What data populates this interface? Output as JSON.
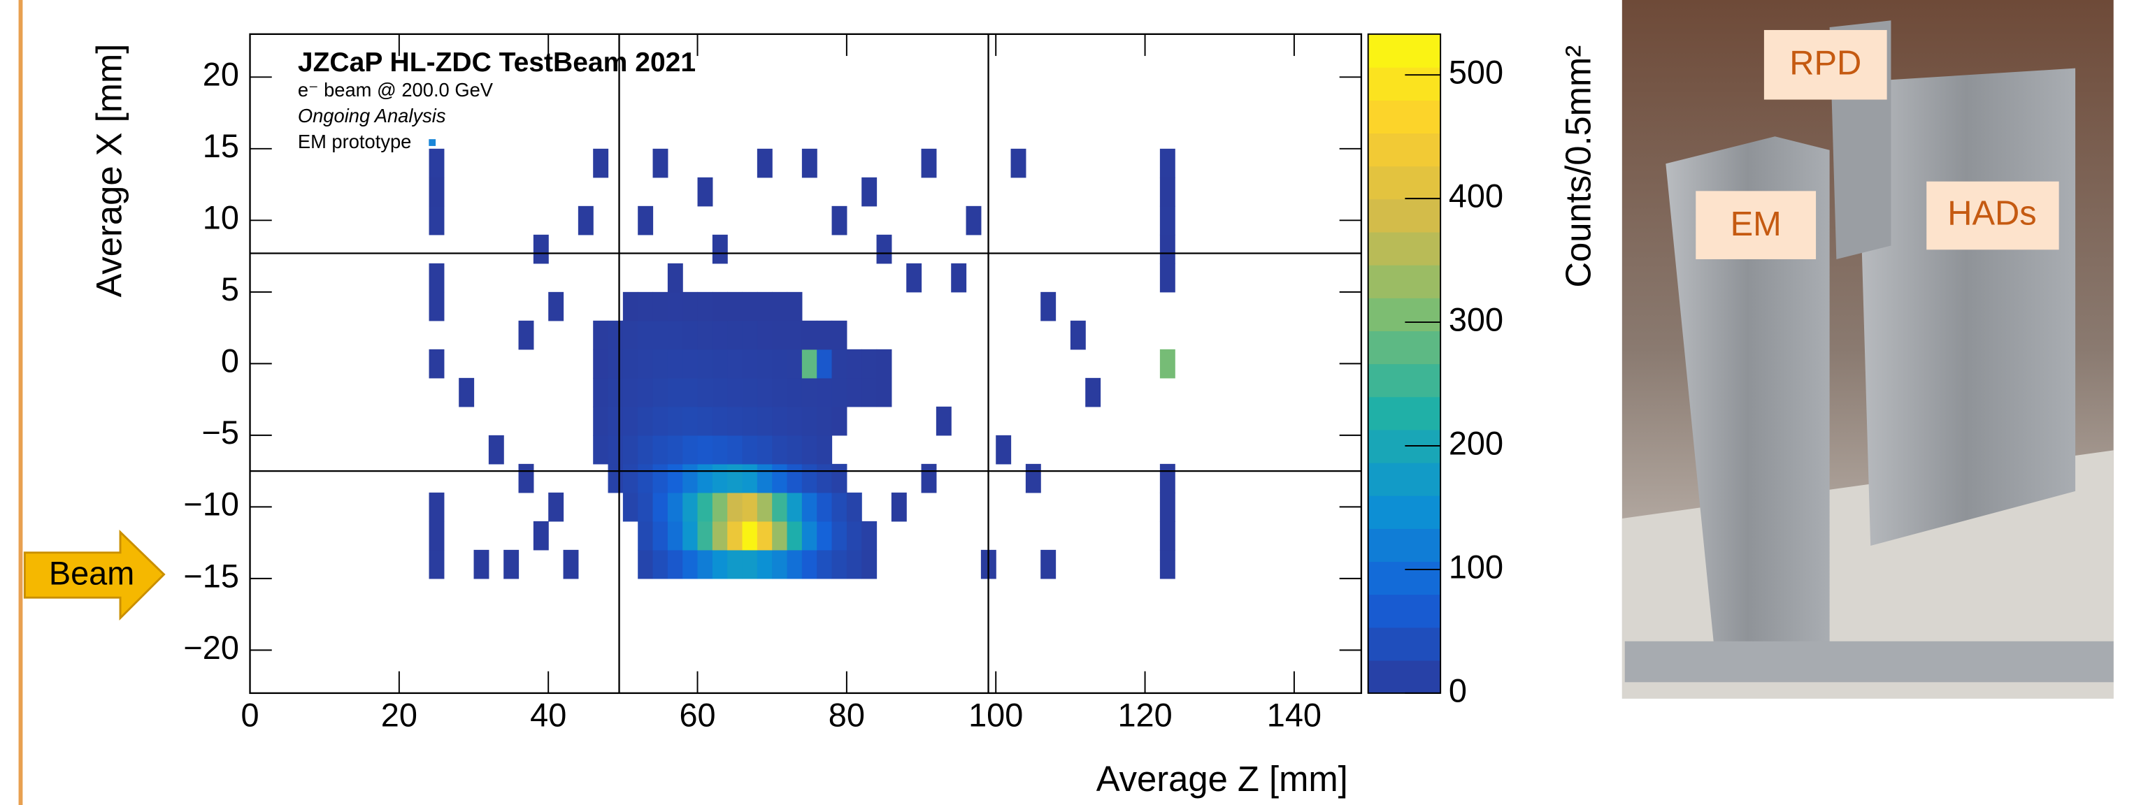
{
  "chart_data": {
    "type": "heatmap",
    "title": "JZCaP HL-ZDC TestBeam 2021",
    "subtitle": "e⁻ beam @ 200.0 GeV",
    "status": "Ongoing Analysis",
    "legend_label": "EM prototype",
    "x_label": "Average Z [mm]",
    "y_label": "Average X [mm]",
    "colorbar_label": "Counts/0.5mm²",
    "annotations": {
      "beam": "Beam",
      "rpd": "RPD",
      "em": "EM",
      "hads": "HADs"
    },
    "xlim": [
      0,
      149
    ],
    "ylim": [
      -23,
      23
    ],
    "zlim": [
      0,
      533
    ],
    "xticks": [
      0,
      20,
      40,
      60,
      80,
      100,
      120,
      140
    ],
    "yticks": [
      {
        "value": -20,
        "label": "−20"
      },
      {
        "value": -15,
        "label": "−15"
      },
      {
        "value": -10,
        "label": "−10"
      },
      {
        "value": -5,
        "label": "−5"
      },
      0,
      5,
      10,
      15,
      20
    ],
    "zticks": [
      0,
      100,
      200,
      300,
      400,
      500
    ],
    "vlines": [
      49.5,
      99
    ],
    "hlines": [
      7.7,
      -7.5
    ],
    "colormap": [
      "#2b3b9c",
      "#1560d9",
      "#0c93d4",
      "#20b1a6",
      "#7bbd73",
      "#d0ba4c",
      "#fcce2e",
      "#f9fb0e"
    ],
    "x": [
      53,
      55,
      57,
      59,
      61,
      63,
      65,
      67,
      69,
      71,
      73,
      75,
      77,
      79,
      81,
      83,
      53,
      55,
      57,
      59,
      61,
      63,
      65,
      67,
      69,
      71,
      73,
      75,
      77,
      79,
      81,
      83,
      51,
      53,
      55,
      57,
      59,
      61,
      63,
      65,
      67,
      69,
      71,
      73,
      75,
      77,
      79,
      81,
      49,
      51,
      53,
      55,
      57,
      59,
      61,
      63,
      65,
      67,
      69,
      71,
      73,
      75,
      77,
      79,
      47,
      49,
      51,
      53,
      55,
      57,
      59,
      61,
      63,
      65,
      67,
      69,
      71,
      73,
      75,
      77,
      47,
      49,
      51,
      53,
      55,
      57,
      59,
      61,
      63,
      65,
      67,
      69,
      71,
      73,
      75,
      77,
      79,
      47,
      49,
      51,
      53,
      55,
      57,
      59,
      61,
      63,
      65,
      67,
      69,
      71,
      73,
      75,
      77,
      79,
      81,
      83,
      85,
      47,
      49,
      51,
      53,
      55,
      57,
      59,
      61,
      63,
      65,
      67,
      69,
      71,
      73,
      75,
      77,
      79,
      81,
      83,
      85,
      47,
      49,
      51,
      53,
      55,
      57,
      59,
      61,
      63,
      65,
      67,
      69,
      71,
      73,
      75,
      77,
      79,
      51,
      53,
      55,
      57,
      59,
      61,
      63,
      65,
      67,
      69,
      71,
      73,
      25,
      25,
      25,
      25,
      25,
      25,
      25,
      25,
      25,
      123,
      123,
      123,
      123,
      123,
      123,
      123,
      123,
      123,
      123,
      31,
      35,
      39,
      43,
      41,
      37,
      33,
      29,
      37,
      41,
      39,
      45,
      47,
      55,
      61,
      69,
      75,
      83,
      91,
      97,
      103,
      107,
      111,
      113,
      105,
      101,
      99,
      107,
      93,
      89,
      85,
      95,
      79,
      63,
      53,
      57,
      87,
      91
    ],
    "y": [
      -14,
      -14,
      -14,
      -14,
      -14,
      -14,
      -14,
      -14,
      -14,
      -14,
      -14,
      -14,
      -14,
      -14,
      -14,
      -14,
      -12,
      -12,
      -12,
      -12,
      -12,
      -12,
      -12,
      -12,
      -12,
      -12,
      -12,
      -12,
      -12,
      -12,
      -12,
      -12,
      -10,
      -10,
      -10,
      -10,
      -10,
      -10,
      -10,
      -10,
      -10,
      -10,
      -10,
      -10,
      -10,
      -10,
      -10,
      -10,
      -8,
      -8,
      -8,
      -8,
      -8,
      -8,
      -8,
      -8,
      -8,
      -8,
      -8,
      -8,
      -8,
      -8,
      -8,
      -8,
      -6,
      -6,
      -6,
      -6,
      -6,
      -6,
      -6,
      -6,
      -6,
      -6,
      -6,
      -6,
      -6,
      -6,
      -6,
      -6,
      -4,
      -4,
      -4,
      -4,
      -4,
      -4,
      -4,
      -4,
      -4,
      -4,
      -4,
      -4,
      -4,
      -4,
      -4,
      -4,
      -4,
      -2,
      -2,
      -2,
      -2,
      -2,
      -2,
      -2,
      -2,
      -2,
      -2,
      -2,
      -2,
      -2,
      -2,
      -2,
      -2,
      -2,
      -2,
      -2,
      -2,
      0,
      0,
      0,
      0,
      0,
      0,
      0,
      0,
      0,
      0,
      0,
      0,
      0,
      0,
      0,
      0,
      0,
      0,
      0,
      0,
      2,
      2,
      2,
      2,
      2,
      2,
      2,
      2,
      2,
      2,
      2,
      2,
      2,
      2,
      2,
      2,
      2,
      4,
      4,
      4,
      4,
      4,
      4,
      4,
      4,
      4,
      4,
      4,
      4,
      -14,
      -12,
      -10,
      0,
      4,
      6,
      10,
      12,
      14,
      -14,
      -12,
      -10,
      -8,
      0,
      6,
      8,
      10,
      12,
      14,
      -14,
      -14,
      -12,
      -14,
      -10,
      -8,
      -6,
      -2,
      2,
      4,
      8,
      10,
      14,
      14,
      12,
      14,
      14,
      12,
      14,
      10,
      14,
      4,
      2,
      -2,
      -8,
      -6,
      -14,
      -14,
      -4,
      6,
      8,
      6,
      10,
      8,
      10,
      6,
      -10,
      -8
    ],
    "values": [
      20,
      40,
      60,
      90,
      120,
      150,
      170,
      170,
      150,
      130,
      100,
      70,
      45,
      30,
      20,
      10,
      30,
      60,
      100,
      160,
      250,
      340,
      430,
      520,
      440,
      330,
      220,
      130,
      80,
      45,
      25,
      12,
      20,
      35,
      70,
      110,
      170,
      240,
      310,
      380,
      400,
      340,
      250,
      170,
      100,
      60,
      35,
      18,
      15,
      25,
      40,
      60,
      80,
      110,
      140,
      160,
      170,
      160,
      120,
      90,
      60,
      40,
      25,
      15,
      10,
      15,
      20,
      30,
      40,
      45,
      55,
      60,
      55,
      50,
      40,
      35,
      25,
      20,
      15,
      10,
      8,
      12,
      15,
      20,
      25,
      28,
      30,
      28,
      25,
      22,
      20,
      18,
      15,
      12,
      10,
      8,
      5,
      6,
      10,
      12,
      15,
      18,
      20,
      20,
      18,
      16,
      15,
      14,
      12,
      10,
      9,
      8,
      7,
      6,
      5,
      4,
      3,
      5,
      8,
      10,
      12,
      14,
      15,
      15,
      14,
      13,
      12,
      11,
      10,
      9,
      8,
      280,
      60,
      6,
      5,
      4,
      3,
      4,
      6,
      8,
      10,
      10,
      10,
      9,
      8,
      7,
      6,
      6,
      5,
      4,
      4,
      3,
      3,
      2,
      3,
      4,
      4,
      5,
      4,
      4,
      3,
      3,
      3,
      2,
      2,
      2,
      4,
      3,
      3,
      3,
      3,
      3,
      4,
      3,
      5,
      4,
      3,
      3,
      3,
      300,
      3,
      3,
      4,
      3,
      4,
      2,
      2,
      2,
      3,
      2,
      2,
      2,
      2,
      2,
      2,
      2,
      2,
      2,
      2,
      2,
      2,
      2,
      2,
      2,
      2,
      2,
      2,
      2,
      2,
      2,
      2,
      3,
      2,
      2,
      2,
      2,
      2,
      2,
      2,
      2,
      2,
      2,
      2
    ]
  }
}
